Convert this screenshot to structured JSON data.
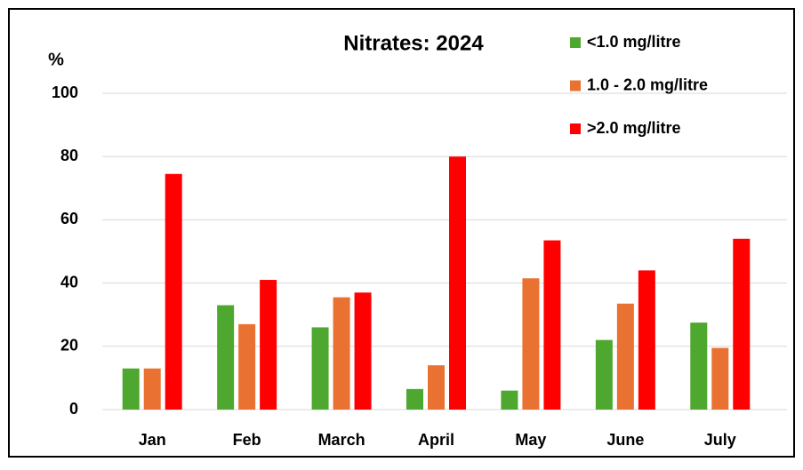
{
  "chart_data": {
    "type": "bar",
    "title": "Nitrates: 2024",
    "y_label": "%",
    "categories": [
      "Jan",
      "Feb",
      "March",
      "April",
      "May",
      "June",
      "July"
    ],
    "series": [
      {
        "name": "<1.0 mg/litre",
        "color": "#4ea72e",
        "values": [
          13,
          33,
          26,
          6.5,
          6,
          22,
          27.5
        ]
      },
      {
        "name": "1.0 - 2.0 mg/litre",
        "color": "#e97132",
        "values": [
          13,
          27,
          35.5,
          14,
          41.5,
          33.5,
          19.5
        ]
      },
      {
        "name": ">2.0 mg/litre",
        "color": "#ff0000",
        "values": [
          74.5,
          41,
          37,
          80,
          53.5,
          44,
          54
        ]
      }
    ],
    "ylim": [
      0,
      100
    ],
    "yticks": [
      0,
      20,
      40,
      60,
      80,
      100
    ],
    "grid": true,
    "legend": "top-right"
  }
}
